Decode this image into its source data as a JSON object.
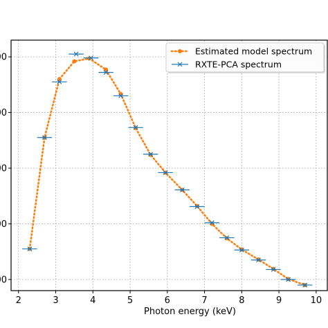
{
  "chart_data": {
    "type": "line",
    "title": "",
    "xlabel": "Photon energy (keV)",
    "ylabel": "",
    "xlim": [
      1.8,
      10.3
    ],
    "xticks": [
      2,
      3,
      4,
      5,
      6,
      7,
      8,
      9,
      10
    ],
    "ylim": [
      -0.2,
      4.3
    ],
    "yticks": [
      0,
      1,
      2,
      3,
      4
    ],
    "ytick_labels": [
      "00",
      "00",
      "00",
      "00",
      "00"
    ],
    "grid": true,
    "legend_position": "top-right",
    "series": [
      {
        "name": "Estimated model spectrum",
        "style": "dotted-line-circle-markers",
        "color": "#ff7f0e",
        "x": [
          2.3,
          2.7,
          3.1,
          3.5,
          3.9,
          4.35,
          4.75,
          5.15,
          5.55,
          5.95,
          6.4,
          6.8,
          7.2,
          7.6,
          8.0,
          8.45,
          8.85,
          9.25,
          9.7
        ],
        "y": [
          0.55,
          2.55,
          3.6,
          3.92,
          3.97,
          3.77,
          3.33,
          2.72,
          2.24,
          1.92,
          1.61,
          1.32,
          1.0,
          0.74,
          0.54,
          0.36,
          0.19,
          0.01,
          -0.1
        ]
      },
      {
        "name": "RXTE-PCA spectrum",
        "style": "x-markers-errorbars",
        "color": "#1f77b4",
        "x": [
          2.3,
          2.7,
          3.1,
          3.55,
          3.95,
          4.35,
          4.75,
          5.15,
          5.55,
          5.95,
          6.4,
          6.8,
          7.2,
          7.6,
          8.0,
          8.45,
          8.85,
          9.25,
          9.7
        ],
        "y": [
          0.55,
          2.55,
          3.55,
          4.05,
          3.98,
          3.72,
          3.3,
          2.73,
          2.25,
          1.92,
          1.61,
          1.31,
          1.02,
          0.75,
          0.53,
          0.35,
          0.18,
          0.0,
          -0.1
        ],
        "xerr": [
          0.2,
          0.2,
          0.2,
          0.2,
          0.2,
          0.2,
          0.2,
          0.2,
          0.2,
          0.2,
          0.2,
          0.2,
          0.2,
          0.2,
          0.2,
          0.2,
          0.2,
          0.2,
          0.2
        ]
      }
    ]
  },
  "legend": {
    "model_label": "Estimated model spectrum",
    "rxte_label": "RXTE-PCA spectrum"
  }
}
